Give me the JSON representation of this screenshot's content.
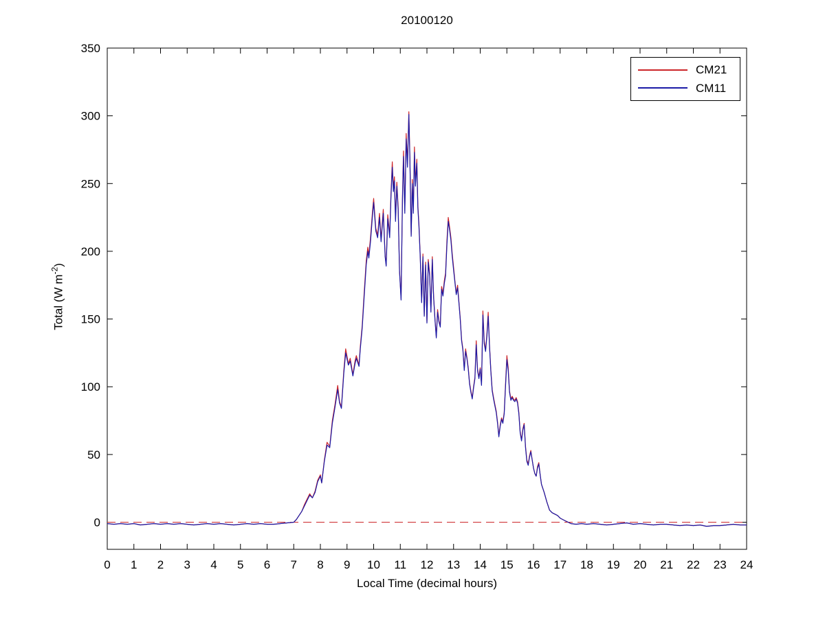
{
  "chart_data": {
    "type": "line",
    "title": "20100120",
    "xlabel": "Local Time (decimal hours)",
    "ylabel": "Total (W m-2)",
    "ylabel_parts": {
      "base": "Total (W m",
      "sup": "-2",
      "close": ")"
    },
    "xlim": [
      0,
      24
    ],
    "ylim": [
      -20,
      350
    ],
    "xticks": [
      0,
      1,
      2,
      3,
      4,
      5,
      6,
      7,
      8,
      9,
      10,
      11,
      12,
      13,
      14,
      15,
      16,
      17,
      18,
      19,
      20,
      21,
      22,
      23,
      24
    ],
    "yticks": [
      0,
      50,
      100,
      150,
      200,
      250,
      300,
      350
    ],
    "grid": false,
    "frame_color": "#000000",
    "legend": {
      "position": "top-right"
    },
    "zero_reference_line": {
      "y": 0,
      "color": "#cc2428",
      "style": "dashed"
    },
    "columns": [
      "hour",
      "CM11",
      "CM21"
    ],
    "series": [
      {
        "name": "CM21",
        "color": "#cc2428",
        "style": "solid",
        "column": 2
      },
      {
        "name": "CM11",
        "color": "#1a1aa6",
        "style": "solid",
        "column": 1
      }
    ],
    "points": [
      [
        0,
        -1,
        -1
      ],
      [
        0.25,
        -1.5,
        -1.5
      ],
      [
        0.5,
        -1,
        -1
      ],
      [
        0.75,
        -1.5,
        -1.5
      ],
      [
        1,
        -1,
        -1
      ],
      [
        1.25,
        -2,
        -2
      ],
      [
        1.5,
        -1.5,
        -1.5
      ],
      [
        1.75,
        -1,
        -1
      ],
      [
        2,
        -1.5,
        -1.5
      ],
      [
        2.25,
        -1,
        -1
      ],
      [
        2.5,
        -1.5,
        -1.5
      ],
      [
        2.75,
        -1,
        -1
      ],
      [
        3,
        -1.5,
        -1.5
      ],
      [
        3.25,
        -2,
        -2
      ],
      [
        3.5,
        -1.5,
        -1.5
      ],
      [
        3.75,
        -1,
        -1
      ],
      [
        4,
        -1.5,
        -1.5
      ],
      [
        4.25,
        -1,
        -1
      ],
      [
        4.5,
        -1.5,
        -1.5
      ],
      [
        4.75,
        -2,
        -2
      ],
      [
        5,
        -1.5,
        -1.5
      ],
      [
        5.25,
        -1,
        -1
      ],
      [
        5.5,
        -1.5,
        -1.5
      ],
      [
        5.75,
        -1,
        -1
      ],
      [
        6,
        -1.5,
        -1.5
      ],
      [
        6.25,
        -1.5,
        -1.5
      ],
      [
        6.5,
        -1,
        -1
      ],
      [
        6.75,
        -0.5,
        -0.5
      ],
      [
        7,
        0,
        0
      ],
      [
        7.1,
        2,
        2
      ],
      [
        7.2,
        5,
        5
      ],
      [
        7.3,
        8,
        8
      ],
      [
        7.4,
        12,
        13
      ],
      [
        7.5,
        16,
        17
      ],
      [
        7.6,
        20,
        21
      ],
      [
        7.7,
        18,
        18
      ],
      [
        7.8,
        22,
        23
      ],
      [
        7.9,
        30,
        31
      ],
      [
        8,
        34,
        35
      ],
      [
        8.05,
        29,
        29
      ],
      [
        8.15,
        45,
        46
      ],
      [
        8.25,
        57,
        59
      ],
      [
        8.35,
        55,
        56
      ],
      [
        8.45,
        73,
        75
      ],
      [
        8.55,
        85,
        87
      ],
      [
        8.65,
        98,
        101
      ],
      [
        8.72,
        88,
        89
      ],
      [
        8.79,
        84,
        85
      ],
      [
        8.88,
        110,
        112
      ],
      [
        8.95,
        125,
        128
      ],
      [
        9.05,
        116,
        117
      ],
      [
        9.12,
        119,
        121
      ],
      [
        9.22,
        108,
        109
      ],
      [
        9.3,
        117,
        119
      ],
      [
        9.35,
        121,
        123
      ],
      [
        9.45,
        115,
        116
      ],
      [
        9.5,
        128,
        130
      ],
      [
        9.57,
        143,
        145
      ],
      [
        9.65,
        168,
        171
      ],
      [
        9.72,
        190,
        193
      ],
      [
        9.78,
        200,
        203
      ],
      [
        9.82,
        195,
        197
      ],
      [
        9.88,
        207,
        210
      ],
      [
        9.95,
        225,
        228
      ],
      [
        10,
        236,
        239
      ],
      [
        10.08,
        215,
        217
      ],
      [
        10.15,
        210,
        212
      ],
      [
        10.22,
        225,
        228
      ],
      [
        10.28,
        207,
        209
      ],
      [
        10.36,
        228,
        231
      ],
      [
        10.43,
        196,
        197
      ],
      [
        10.47,
        189,
        190
      ],
      [
        10.53,
        224,
        227
      ],
      [
        10.6,
        210,
        212
      ],
      [
        10.65,
        240,
        243
      ],
      [
        10.7,
        262,
        266
      ],
      [
        10.74,
        244,
        246
      ],
      [
        10.78,
        252,
        255
      ],
      [
        10.82,
        222,
        224
      ],
      [
        10.87,
        248,
        251
      ],
      [
        10.92,
        230,
        232
      ],
      [
        10.97,
        185,
        186
      ],
      [
        11.03,
        164,
        165
      ],
      [
        11.08,
        238,
        241
      ],
      [
        11.12,
        270,
        274
      ],
      [
        11.17,
        228,
        230
      ],
      [
        11.22,
        283,
        287
      ],
      [
        11.27,
        262,
        265
      ],
      [
        11.32,
        301,
        303
      ],
      [
        11.36,
        268,
        270
      ],
      [
        11.41,
        211,
        212
      ],
      [
        11.45,
        250,
        253
      ],
      [
        11.49,
        228,
        230
      ],
      [
        11.53,
        273,
        277
      ],
      [
        11.57,
        248,
        250
      ],
      [
        11.62,
        265,
        268
      ],
      [
        11.66,
        232,
        234
      ],
      [
        11.7,
        218,
        220
      ],
      [
        11.75,
        195,
        196
      ],
      [
        11.8,
        162,
        163
      ],
      [
        11.85,
        196,
        198
      ],
      [
        11.9,
        152,
        153
      ],
      [
        11.95,
        190,
        192
      ],
      [
        12,
        147,
        148
      ],
      [
        12.05,
        192,
        194
      ],
      [
        12.1,
        182,
        184
      ],
      [
        12.15,
        155,
        156
      ],
      [
        12.2,
        194,
        196
      ],
      [
        12.25,
        166,
        167
      ],
      [
        12.3,
        150,
        151
      ],
      [
        12.35,
        136,
        137
      ],
      [
        12.4,
        155,
        157
      ],
      [
        12.45,
        148,
        149
      ],
      [
        12.5,
        144,
        145
      ],
      [
        12.55,
        172,
        174
      ],
      [
        12.6,
        167,
        169
      ],
      [
        12.65,
        176,
        178
      ],
      [
        12.7,
        182,
        184
      ],
      [
        12.75,
        205,
        208
      ],
      [
        12.8,
        222,
        225
      ],
      [
        12.85,
        216,
        218
      ],
      [
        12.9,
        208,
        210
      ],
      [
        12.95,
        196,
        198
      ],
      [
        13,
        186,
        188
      ],
      [
        13.05,
        177,
        178
      ],
      [
        13.1,
        168,
        169
      ],
      [
        13.15,
        173,
        175
      ],
      [
        13.2,
        162,
        163
      ],
      [
        13.25,
        150,
        151
      ],
      [
        13.3,
        134,
        135
      ],
      [
        13.35,
        127,
        128
      ],
      [
        13.4,
        112,
        113
      ],
      [
        13.45,
        126,
        128
      ],
      [
        13.5,
        121,
        122
      ],
      [
        13.55,
        113,
        114
      ],
      [
        13.6,
        102,
        103
      ],
      [
        13.65,
        96,
        97
      ],
      [
        13.7,
        91,
        92
      ],
      [
        13.75,
        99,
        100
      ],
      [
        13.8,
        106,
        107
      ],
      [
        13.85,
        131,
        134
      ],
      [
        13.9,
        112,
        113
      ],
      [
        13.95,
        106,
        107
      ],
      [
        14,
        113,
        114
      ],
      [
        14.05,
        101,
        102
      ],
      [
        14.1,
        153,
        156
      ],
      [
        14.15,
        132,
        134
      ],
      [
        14.2,
        126,
        127
      ],
      [
        14.25,
        137,
        139
      ],
      [
        14.3,
        152,
        155
      ],
      [
        14.35,
        129,
        130
      ],
      [
        14.4,
        111,
        112
      ],
      [
        14.45,
        97,
        98
      ],
      [
        14.5,
        91,
        92
      ],
      [
        14.55,
        86,
        87
      ],
      [
        14.6,
        81,
        82
      ],
      [
        14.65,
        73,
        74
      ],
      [
        14.7,
        63,
        64
      ],
      [
        14.75,
        71,
        72
      ],
      [
        14.8,
        76,
        77
      ],
      [
        14.85,
        73,
        74
      ],
      [
        14.9,
        80,
        81
      ],
      [
        14.95,
        100,
        102
      ],
      [
        15,
        120,
        123
      ],
      [
        15.05,
        112,
        114
      ],
      [
        15.1,
        96,
        97
      ],
      [
        15.15,
        90,
        91
      ],
      [
        15.2,
        92,
        93
      ],
      [
        15.25,
        90,
        91
      ],
      [
        15.3,
        89,
        90
      ],
      [
        15.35,
        91,
        92
      ],
      [
        15.4,
        88,
        89
      ],
      [
        15.45,
        80,
        81
      ],
      [
        15.5,
        66,
        67
      ],
      [
        15.55,
        60,
        61
      ],
      [
        15.6,
        68,
        69
      ],
      [
        15.65,
        72,
        73
      ],
      [
        15.7,
        55,
        56
      ],
      [
        15.75,
        45,
        46
      ],
      [
        15.8,
        42,
        43
      ],
      [
        15.85,
        48,
        49
      ],
      [
        15.9,
        52,
        53
      ],
      [
        15.95,
        46,
        46
      ],
      [
        16,
        40,
        40
      ],
      [
        16.05,
        36,
        36
      ],
      [
        16.1,
        34,
        34
      ],
      [
        16.15,
        40,
        41
      ],
      [
        16.2,
        43,
        44
      ],
      [
        16.25,
        35,
        35
      ],
      [
        16.3,
        28,
        28
      ],
      [
        16.4,
        22,
        22
      ],
      [
        16.5,
        15,
        15
      ],
      [
        16.6,
        9,
        9
      ],
      [
        16.7,
        7,
        7
      ],
      [
        16.8,
        6,
        6
      ],
      [
        16.9,
        5,
        5
      ],
      [
        17,
        3,
        3
      ],
      [
        17.1,
        2,
        2
      ],
      [
        17.2,
        1,
        1
      ],
      [
        17.3,
        0,
        0
      ],
      [
        17.4,
        -1,
        -1
      ],
      [
        17.6,
        -1.5,
        -1.5
      ],
      [
        17.8,
        -1,
        -1
      ],
      [
        18,
        -1.5,
        -1.5
      ],
      [
        18.25,
        -1,
        -1
      ],
      [
        18.5,
        -1.5,
        -1.5
      ],
      [
        18.75,
        -2,
        -2
      ],
      [
        19,
        -1.5,
        -1.5
      ],
      [
        19.25,
        -1,
        -1
      ],
      [
        19.5,
        -0.5,
        -0.5
      ],
      [
        19.75,
        -1.5,
        -1.5
      ],
      [
        20,
        -1,
        -1
      ],
      [
        20.25,
        -1.5,
        -1.5
      ],
      [
        20.5,
        -2,
        -2
      ],
      [
        20.75,
        -1.5,
        -1.5
      ],
      [
        21,
        -1.5,
        -1.5
      ],
      [
        21.25,
        -2,
        -2
      ],
      [
        21.5,
        -2.5,
        -2.5
      ],
      [
        21.75,
        -2,
        -2
      ],
      [
        22,
        -2.5,
        -2.5
      ],
      [
        22.25,
        -2,
        -2
      ],
      [
        22.5,
        -3,
        -3
      ],
      [
        22.75,
        -2.5,
        -2.5
      ],
      [
        23,
        -2.5,
        -2.5
      ],
      [
        23.25,
        -2,
        -2
      ],
      [
        23.5,
        -1.5,
        -1.5
      ],
      [
        23.75,
        -2,
        -2
      ],
      [
        24,
        -2,
        -2
      ]
    ]
  }
}
